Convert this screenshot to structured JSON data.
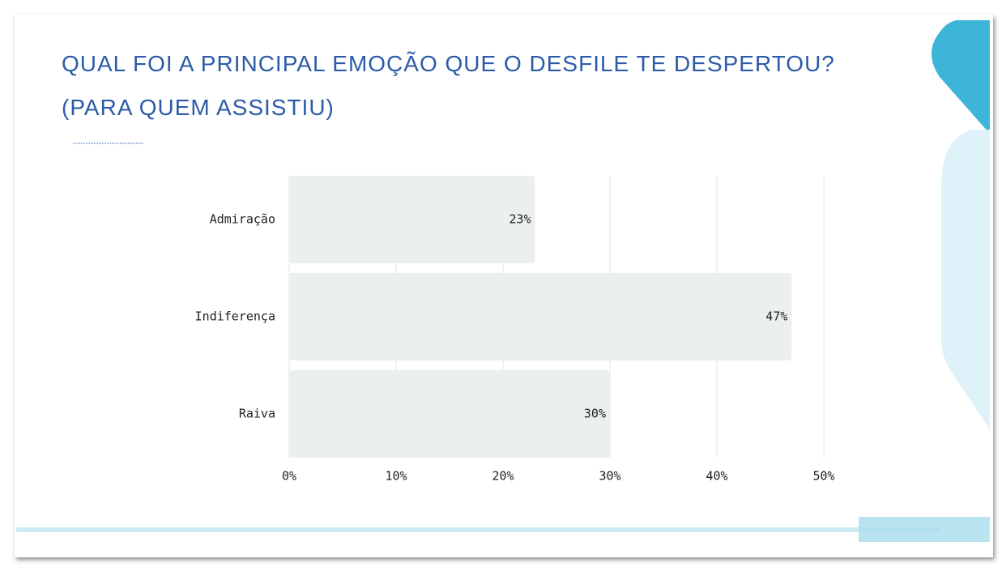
{
  "chart_data": {
    "type": "bar",
    "orientation": "horizontal",
    "title": "QUAL FOI A PRINCIPAL EMOÇÃO QUE O DESFILE TE DESPERTOU?",
    "subtitle": "(PARA QUEM ASSISTIU)",
    "categories": [
      "Admiração",
      "Indiferença",
      "Raiva"
    ],
    "values": [
      23,
      47,
      30
    ],
    "value_labels": [
      "23%",
      "47%",
      "30%"
    ],
    "color": "#eceff0",
    "xlim": [
      0,
      50
    ],
    "xticks": [
      {
        "value": 0,
        "label": "0%"
      },
      {
        "value": 10,
        "label": "10%"
      },
      {
        "value": 20,
        "label": "20%"
      },
      {
        "value": 30,
        "label": "30%"
      },
      {
        "value": 40,
        "label": "40%"
      },
      {
        "value": 50,
        "label": "50%"
      }
    ],
    "grid": true
  }
}
